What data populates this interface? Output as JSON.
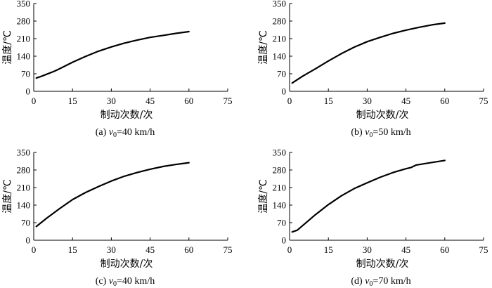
{
  "chart_data": [
    {
      "type": "line",
      "caption": "(a) v0=40 km/h",
      "caption_parts": {
        "prefix": "(a) ",
        "var": "v",
        "sub": "0",
        "suffix": "=40 km/h"
      },
      "xlabel": "制动次数/次",
      "ylabel": "温度/℃",
      "xlim": [
        0,
        75
      ],
      "ylim": [
        0,
        350
      ],
      "xticks": [
        "0",
        "15",
        "30",
        "45",
        "60",
        "75"
      ],
      "yticks": [
        "0",
        "70",
        "140",
        "210",
        "280",
        "350"
      ],
      "series": [
        {
          "name": "温度",
          "x": [
            1,
            3,
            5,
            8,
            10,
            15,
            20,
            25,
            30,
            35,
            40,
            45,
            50,
            55,
            60
          ],
          "y": [
            53,
            60,
            68,
            80,
            90,
            116,
            139,
            160,
            177,
            192,
            204,
            215,
            223,
            231,
            238
          ]
        }
      ]
    },
    {
      "type": "line",
      "caption": "(b) v0=50 km/h",
      "caption_parts": {
        "prefix": "(b) ",
        "var": "v",
        "sub": "0",
        "suffix": "=50 km/h"
      },
      "xlabel": "制动次数/次",
      "ylabel": "温度/℃",
      "xlim": [
        0,
        75
      ],
      "ylim": [
        0,
        350
      ],
      "xticks": [
        "0",
        "15",
        "30",
        "45",
        "60",
        "75"
      ],
      "yticks": [
        "0",
        "70",
        "140",
        "210",
        "280",
        "350"
      ],
      "series": [
        {
          "name": "温度",
          "x": [
            1,
            5,
            10,
            15,
            20,
            25,
            30,
            35,
            40,
            45,
            50,
            55,
            60
          ],
          "y": [
            33,
            60,
            90,
            121,
            150,
            176,
            198,
            215,
            231,
            244,
            255,
            265,
            272
          ]
        }
      ]
    },
    {
      "type": "line",
      "caption": "(c) v0=40 km/h",
      "caption_parts": {
        "prefix": "(c) ",
        "var": "v",
        "sub": "0",
        "suffix": "=40 km/h"
      },
      "xlabel": "制动次数/次",
      "ylabel": "温度/℃",
      "xlim": [
        0,
        75
      ],
      "ylim": [
        0,
        350
      ],
      "xticks": [
        "0",
        "15",
        "30",
        "45",
        "60",
        "75"
      ],
      "yticks": [
        "0",
        "70",
        "140",
        "210",
        "280",
        "350"
      ],
      "series": [
        {
          "name": "温度",
          "x": [
            1,
            5,
            10,
            15,
            20,
            25,
            30,
            35,
            40,
            45,
            50,
            55,
            60
          ],
          "y": [
            55,
            88,
            126,
            162,
            190,
            214,
            236,
            255,
            270,
            283,
            294,
            302,
            309
          ]
        }
      ]
    },
    {
      "type": "line",
      "caption": "(d) v0=70 km/h",
      "caption_parts": {
        "prefix": "(d) ",
        "var": "v",
        "sub": "0",
        "suffix": "=70 km/h"
      },
      "xlabel": "制动次数/次",
      "ylabel": "温度/℃",
      "xlim": [
        0,
        75
      ],
      "ylim": [
        0,
        350
      ],
      "xticks": [
        "0",
        "15",
        "30",
        "45",
        "60",
        "75"
      ],
      "yticks": [
        "0",
        "70",
        "140",
        "210",
        "280",
        "350"
      ],
      "series": [
        {
          "name": "温度",
          "x": [
            1,
            3,
            5,
            10,
            15,
            20,
            25,
            30,
            35,
            40,
            45,
            47,
            49,
            55,
            60
          ],
          "y": [
            33,
            40,
            58,
            102,
            142,
            177,
            206,
            229,
            251,
            270,
            285,
            290,
            300,
            310,
            318
          ]
        }
      ]
    }
  ]
}
